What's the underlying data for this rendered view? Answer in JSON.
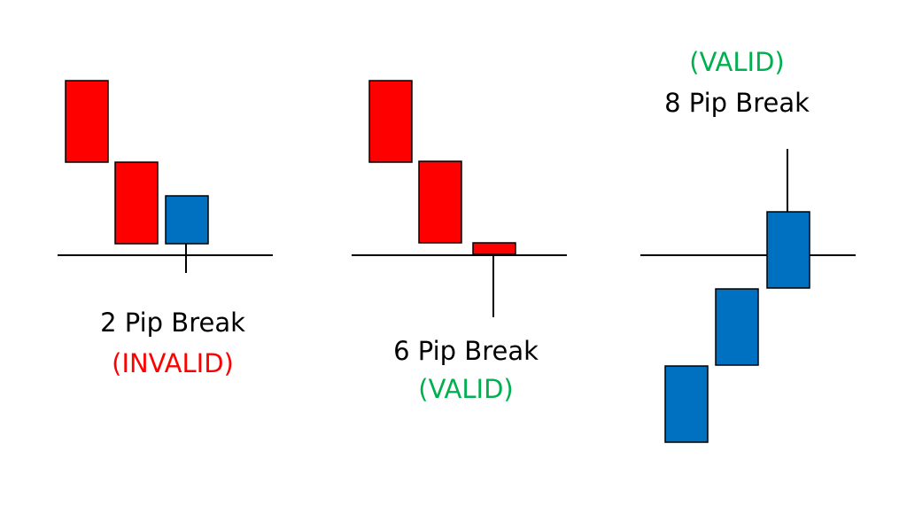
{
  "panels": [
    {
      "label": "2 Pip Break",
      "verdict": "(INVALID)"
    },
    {
      "label": "6 Pip Break",
      "verdict": "(VALID)"
    },
    {
      "label": "8 Pip Break",
      "verdict": "(VALID)"
    }
  ]
}
